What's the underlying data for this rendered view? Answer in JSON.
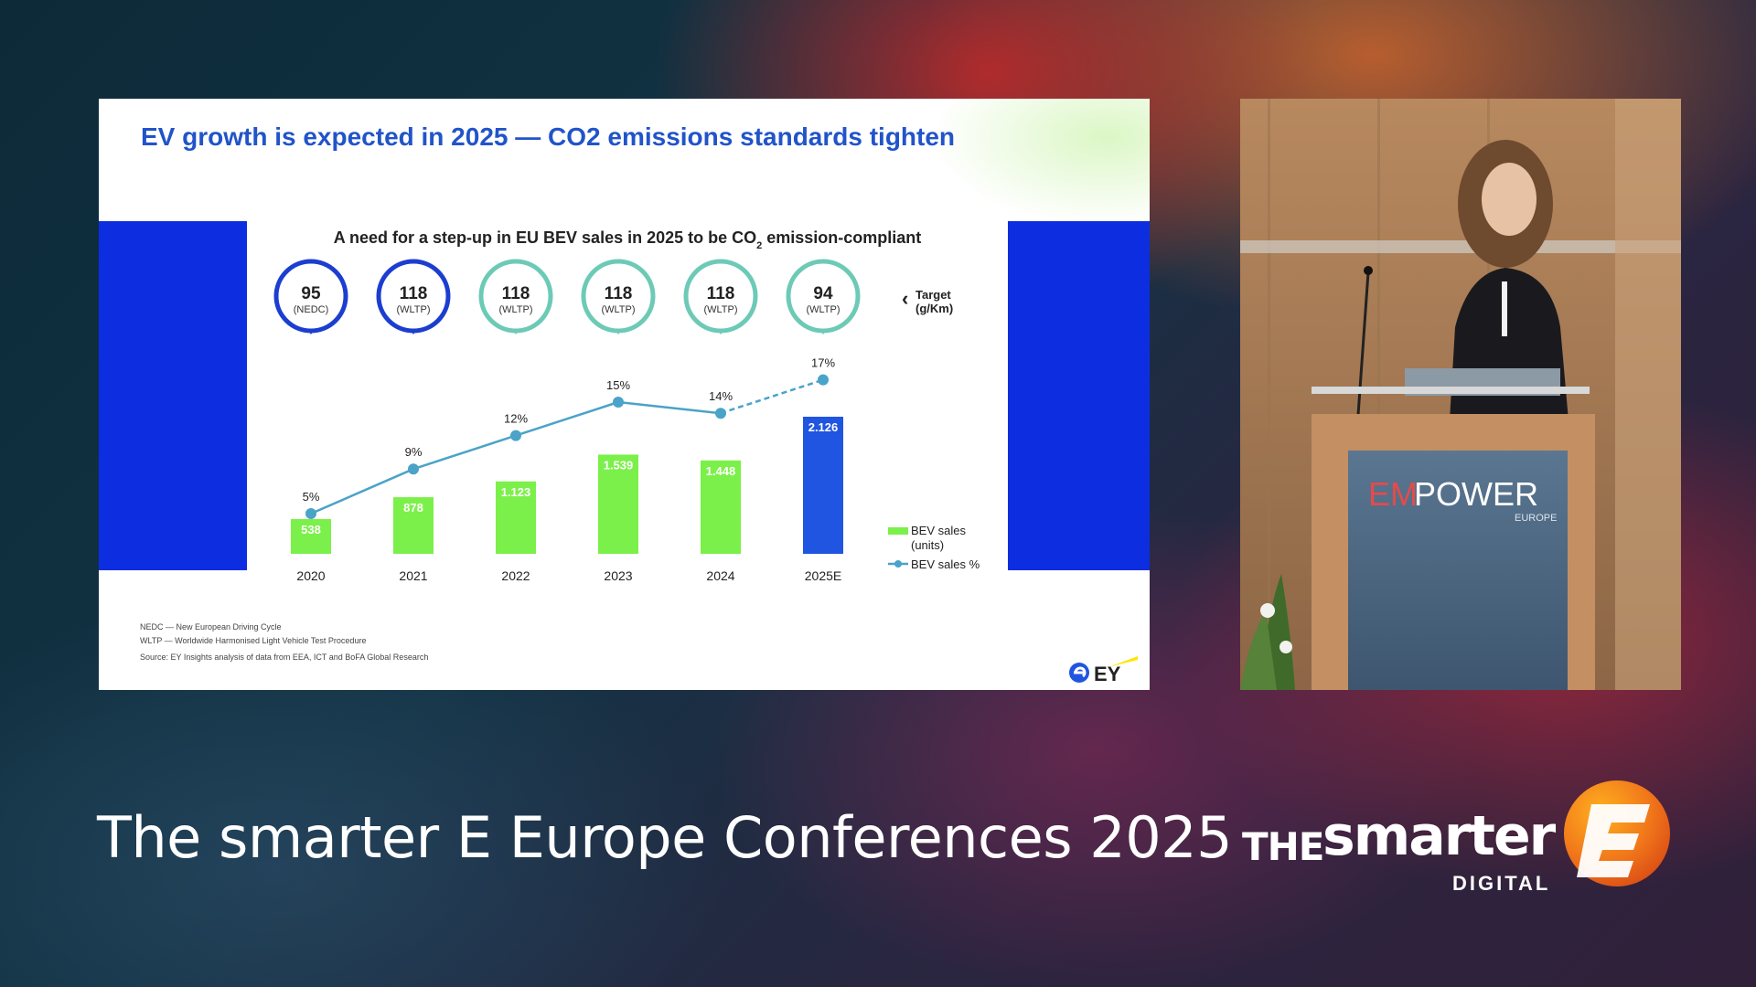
{
  "slide": {
    "title": "EV growth is expected in 2025 — CO2 emissions standards tighten",
    "chart_title_main": "A need for a step-up in EU BEV sales in 2025 to be CO",
    "chart_title_sub": "2",
    "chart_title_end": " emission-compliant",
    "target_label_line1": "Target",
    "target_label_line2": "(g/Km)",
    "footnotes": [
      "NEDC — New European Driving Cycle",
      "WLTP — Worldwide Harmonised Light Vehicle Test Procedure",
      "Source: EY Insights analysis of data from EEA, ICT and BoFA Global Research"
    ],
    "logo_text": "EY"
  },
  "chart_data": {
    "type": "bar",
    "categories": [
      "2020",
      "2021",
      "2022",
      "2023",
      "2024",
      "2025E"
    ],
    "targets": [
      {
        "value": "95",
        "standard": "(NEDC)"
      },
      {
        "value": "118",
        "standard": "(WLTP)"
      },
      {
        "value": "118",
        "standard": "(WLTP)"
      },
      {
        "value": "118",
        "standard": "(WLTP)"
      },
      {
        "value": "118",
        "standard": "(WLTP)"
      },
      {
        "value": "94",
        "standard": "(WLTP)"
      }
    ],
    "series": [
      {
        "name": "BEV sales (units)",
        "type": "bar",
        "values": [
          538,
          878,
          1123,
          1539,
          1448,
          2126
        ],
        "labels": [
          "538",
          "878",
          "1.123",
          "1.539",
          "1.448",
          "2.126"
        ]
      },
      {
        "name": "BEV sales %",
        "type": "line",
        "values": [
          5,
          9,
          12,
          15,
          14,
          17
        ],
        "labels": [
          "5%",
          "9%",
          "12%",
          "15%",
          "14%",
          "17%"
        ]
      }
    ],
    "legend": [
      "BEV sales (units)",
      "BEV sales %"
    ],
    "legend_position": "bottom-right",
    "colors": {
      "bar_actual": "#7cf04a",
      "bar_estimate": "#1f55e0",
      "line": "#4aa3c8",
      "target_dark": "#1c3ed0",
      "target_light": "#6ccab7"
    }
  },
  "event": {
    "title": "The smarter E Europe Conferences 2025",
    "brand_the": "THE",
    "brand_smarter": "smarter",
    "brand_digital": "DIGITAL"
  },
  "video": {
    "sign_text": "EMPOWER",
    "sign_sub": "EUROPE"
  }
}
